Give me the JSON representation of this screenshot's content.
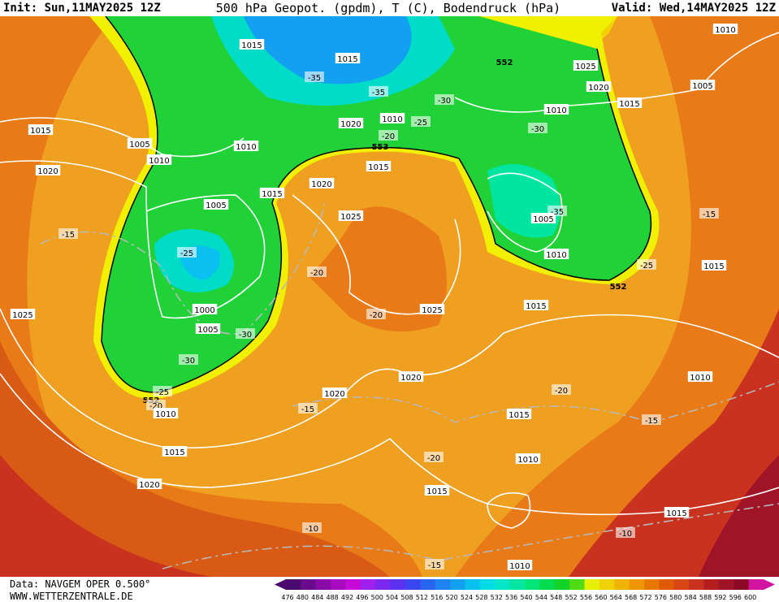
{
  "header": {
    "init": "Init: Sun,11MAY2025 12Z",
    "title": "500 hPa Geopot. (gpdm), T (C), Bodendruck (hPa)",
    "valid": "Valid: Wed,14MAY2025 12Z"
  },
  "footer": {
    "data": "Data: NAVGEM OPER 0.500°",
    "site": "WWW.WETTERZENTRALE.DE"
  },
  "colorbar": {
    "labels": [
      "476",
      "480",
      "484",
      "488",
      "492",
      "496",
      "500",
      "504",
      "508",
      "512",
      "516",
      "520",
      "524",
      "528",
      "532",
      "536",
      "540",
      "544",
      "548",
      "552",
      "556",
      "560",
      "564",
      "568",
      "572",
      "576",
      "580",
      "584",
      "588",
      "592",
      "596",
      "600"
    ],
    "colors": [
      "#4b0a6e",
      "#6a0a8c",
      "#8a0aa8",
      "#a80ac0",
      "#c40ad4",
      "#a020f0",
      "#7a28f0",
      "#5a32f0",
      "#3c46f0",
      "#2864f0",
      "#1e82f0",
      "#14a0f0",
      "#0ac0f0",
      "#00dce6",
      "#00e6c8",
      "#00e6a0",
      "#00e678",
      "#00dc50",
      "#14d228",
      "#50dc14",
      "#e6f000",
      "#f0d200",
      "#f0b400",
      "#f09600",
      "#e87800",
      "#e05a00",
      "#d84614",
      "#c8321e",
      "#b41e1e",
      "#a01428",
      "#8c0a28",
      "#d214a0"
    ]
  },
  "map_labels": [
    "1015",
    "1015",
    "552",
    "1025",
    "1020",
    "1015",
    "1005",
    "1010",
    "-35",
    "-35",
    "-30",
    "1010",
    "-30",
    "1020",
    "1010",
    "-25",
    "-20",
    "553",
    "1015",
    "1005",
    "1010",
    "1010",
    "1015",
    "1020",
    "1020",
    "1015",
    "1005",
    "1025",
    "-15",
    "1005",
    "-35",
    "-25",
    "1010",
    "-25",
    "1015",
    "-15",
    "-20",
    "552",
    "1015",
    "1000",
    "1025",
    "1025",
    "-20",
    "1005",
    "-30",
    "-30",
    "1020",
    "1010",
    "-20",
    "1020",
    "-25",
    "552",
    "-20",
    "1010",
    "-15",
    "1015",
    "-15",
    "1015",
    "-20",
    "1010",
    "1020",
    "1015",
    "1015",
    "-10",
    "-10",
    "-15",
    "1010"
  ]
}
